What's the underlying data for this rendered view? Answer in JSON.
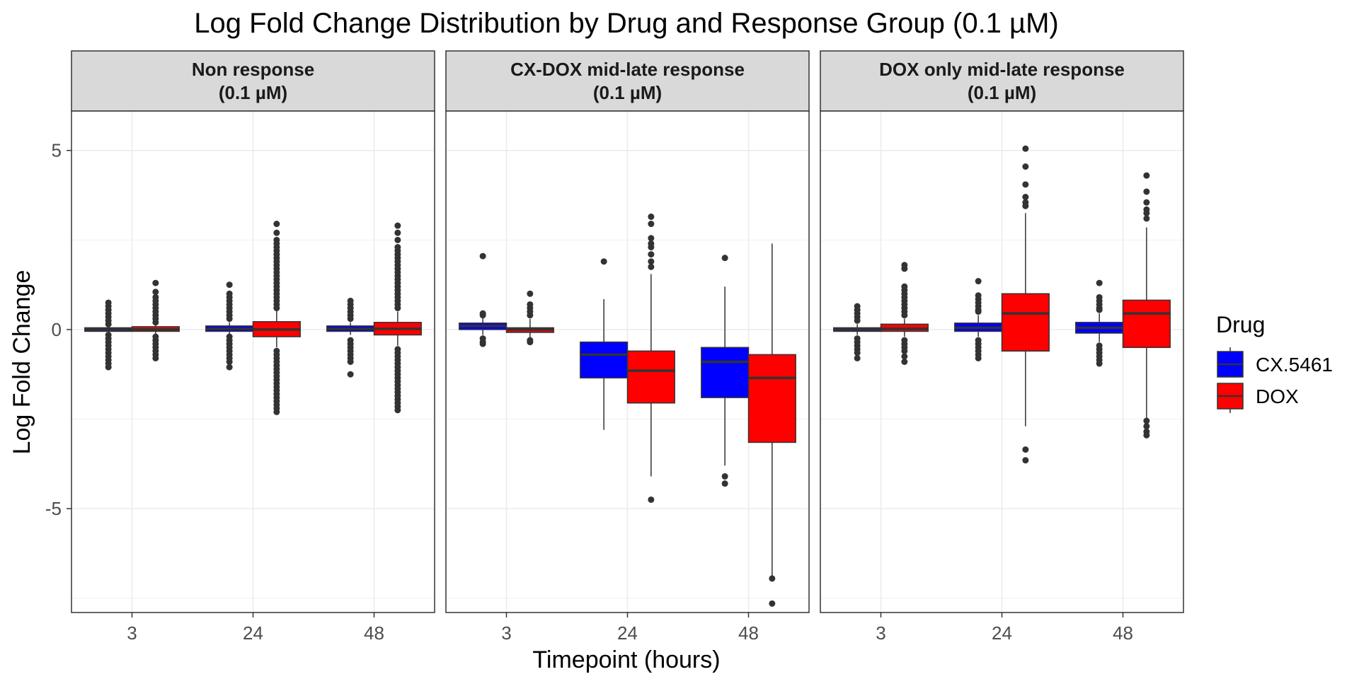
{
  "chart_data": {
    "type": "boxplot",
    "title": "Log Fold Change Distribution by Drug and Response Group (0.1 µM)",
    "xlabel": "Timepoint (hours)",
    "ylabel": "Log Fold Change",
    "ylim": [
      -7.9,
      6.1
    ],
    "yticks": [
      5,
      0,
      -5
    ],
    "ytick_labels": [
      "5",
      "0",
      "-5"
    ],
    "categories": [
      "3",
      "24",
      "48"
    ],
    "grid": true,
    "legend": {
      "title": "Drug",
      "position": "right",
      "entries": [
        {
          "name": "CX.5461",
          "color": "#0000ff"
        },
        {
          "name": "DOX",
          "color": "#ff0000"
        }
      ]
    },
    "facets": [
      {
        "label_line1": "Non response",
        "label_line2": "(0.1 µM)",
        "boxes": [
          {
            "time": "3",
            "drug": "CX.5461",
            "q1": -0.05,
            "median": 0.0,
            "q3": 0.05,
            "whisker_low": -0.1,
            "whisker_high": 0.1,
            "outliers": [
              0.75,
              0.65,
              0.55,
              0.45,
              0.35,
              0.25,
              0.15,
              -0.15,
              -0.25,
              -0.35,
              -0.45,
              -0.55,
              -0.65,
              -0.75,
              -0.85,
              -0.95,
              -1.05
            ]
          },
          {
            "time": "3",
            "drug": "DOX",
            "q1": -0.05,
            "median": 0.0,
            "q3": 0.08,
            "whisker_low": -0.12,
            "whisker_high": 0.15,
            "outliers": [
              1.3,
              1.05,
              0.9,
              0.8,
              0.7,
              0.6,
              0.5,
              0.4,
              0.3,
              0.2,
              -0.2,
              -0.3,
              -0.4,
              -0.5,
              -0.6,
              -0.7,
              -0.8
            ]
          },
          {
            "time": "24",
            "drug": "CX.5461",
            "q1": -0.05,
            "median": 0.02,
            "q3": 0.1,
            "whisker_low": -0.15,
            "whisker_high": 0.2,
            "outliers": [
              1.25,
              1.0,
              0.9,
              0.8,
              0.7,
              0.6,
              0.5,
              0.4,
              0.3,
              -0.2,
              -0.3,
              -0.4,
              -0.5,
              -0.6,
              -0.7,
              -0.8,
              -0.9,
              -1.05
            ]
          },
          {
            "time": "24",
            "drug": "DOX",
            "q1": -0.2,
            "median": 0.0,
            "q3": 0.22,
            "whisker_low": -0.5,
            "whisker_high": 0.55,
            "outliers": [
              2.95,
              2.7,
              2.5,
              2.4,
              2.3,
              2.2,
              2.1,
              2.0,
              1.9,
              1.8,
              1.7,
              1.6,
              1.5,
              1.4,
              1.3,
              1.2,
              1.1,
              1.0,
              0.9,
              0.8,
              0.7,
              0.6,
              -0.6,
              -0.7,
              -0.8,
              -0.9,
              -1.0,
              -1.1,
              -1.2,
              -1.3,
              -1.4,
              -1.5,
              -1.6,
              -1.7,
              -1.8,
              -1.9,
              -2.0,
              -2.1,
              -2.2,
              -2.3
            ]
          },
          {
            "time": "48",
            "drug": "CX.5461",
            "q1": -0.05,
            "median": 0.02,
            "q3": 0.1,
            "whisker_low": -0.15,
            "whisker_high": 0.2,
            "outliers": [
              0.8,
              0.7,
              0.6,
              0.5,
              0.4,
              0.3,
              -0.3,
              -0.4,
              -0.5,
              -0.6,
              -0.7,
              -0.8,
              -0.9,
              -1.25
            ]
          },
          {
            "time": "48",
            "drug": "DOX",
            "q1": -0.15,
            "median": 0.02,
            "q3": 0.2,
            "whisker_low": -0.45,
            "whisker_high": 0.5,
            "outliers": [
              2.9,
              2.7,
              2.5,
              2.3,
              2.2,
              2.1,
              2.0,
              1.9,
              1.8,
              1.7,
              1.6,
              1.5,
              1.4,
              1.3,
              1.2,
              1.1,
              1.0,
              0.9,
              0.8,
              0.7,
              0.6,
              -0.55,
              -0.65,
              -0.75,
              -0.85,
              -0.95,
              -1.05,
              -1.15,
              -1.25,
              -1.35,
              -1.45,
              -1.55,
              -1.65,
              -1.75,
              -1.85,
              -1.95,
              -2.05,
              -2.15,
              -2.25
            ]
          }
        ]
      },
      {
        "label_line1": "CX-DOX mid-late response",
        "label_line2": "(0.1 µM)",
        "boxes": [
          {
            "time": "3",
            "drug": "CX.5461",
            "q1": 0.0,
            "median": 0.1,
            "q3": 0.18,
            "whisker_low": -0.15,
            "whisker_high": 0.35,
            "outliers": [
              2.05,
              0.45,
              0.4,
              -0.25,
              -0.35,
              -0.4
            ]
          },
          {
            "time": "3",
            "drug": "DOX",
            "q1": -0.08,
            "median": 0.0,
            "q3": 0.05,
            "whisker_low": -0.25,
            "whisker_high": 0.3,
            "outliers": [
              1.0,
              0.7,
              0.6,
              0.5,
              0.4,
              -0.3,
              -0.35
            ]
          },
          {
            "time": "24",
            "drug": "CX.5461",
            "q1": -1.35,
            "median": -0.7,
            "q3": -0.35,
            "whisker_low": -2.8,
            "whisker_high": 0.85,
            "outliers": [
              1.9
            ]
          },
          {
            "time": "24",
            "drug": "DOX",
            "q1": -2.05,
            "median": -1.15,
            "q3": -0.6,
            "whisker_low": -4.1,
            "whisker_high": 1.55,
            "outliers": [
              3.15,
              2.95,
              2.55,
              2.4,
              2.3,
              2.1,
              1.9,
              1.75,
              -4.75
            ]
          },
          {
            "time": "48",
            "drug": "CX.5461",
            "q1": -1.9,
            "median": -0.9,
            "q3": -0.5,
            "whisker_low": -3.8,
            "whisker_high": 1.2,
            "outliers": [
              2.0,
              -4.1,
              -4.3
            ]
          },
          {
            "time": "48",
            "drug": "DOX",
            "q1": -3.15,
            "median": -1.35,
            "q3": -0.7,
            "whisker_low": -6.9,
            "whisker_high": 2.4,
            "outliers": [
              -6.95,
              -7.65
            ]
          }
        ]
      },
      {
        "label_line1": "DOX only mid-late response",
        "label_line2": "(0.1 µM)",
        "boxes": [
          {
            "time": "3",
            "drug": "CX.5461",
            "q1": -0.05,
            "median": 0.0,
            "q3": 0.05,
            "whisker_low": -0.15,
            "whisker_high": 0.15,
            "outliers": [
              0.65,
              0.55,
              0.45,
              0.35,
              0.25,
              -0.25,
              -0.35,
              -0.45,
              -0.55,
              -0.65,
              -0.8
            ]
          },
          {
            "time": "3",
            "drug": "DOX",
            "q1": -0.05,
            "median": 0.02,
            "q3": 0.15,
            "whisker_low": -0.2,
            "whisker_high": 0.3,
            "outliers": [
              1.8,
              1.7,
              1.2,
              1.1,
              1.0,
              0.9,
              0.8,
              0.7,
              0.6,
              0.5,
              0.4,
              -0.3,
              -0.4,
              -0.5,
              -0.6,
              -0.75,
              -0.9
            ]
          },
          {
            "time": "24",
            "drug": "CX.5461",
            "q1": -0.05,
            "median": 0.05,
            "q3": 0.18,
            "whisker_low": -0.2,
            "whisker_high": 0.4,
            "outliers": [
              1.35,
              0.95,
              0.85,
              0.75,
              0.65,
              0.55,
              0.5,
              -0.3,
              -0.4,
              -0.5,
              -0.6,
              -0.7,
              -0.8
            ]
          },
          {
            "time": "24",
            "drug": "DOX",
            "q1": -0.6,
            "median": 0.45,
            "q3": 1.0,
            "whisker_low": -2.7,
            "whisker_high": 3.25,
            "outliers": [
              5.05,
              4.55,
              4.05,
              3.7,
              3.55,
              3.45,
              -3.35,
              -3.65
            ]
          },
          {
            "time": "48",
            "drug": "CX.5461",
            "q1": -0.1,
            "median": 0.05,
            "q3": 0.2,
            "whisker_low": -0.35,
            "whisker_high": 0.45,
            "outliers": [
              1.3,
              0.9,
              0.8,
              0.7,
              0.6,
              0.55,
              -0.45,
              -0.55,
              -0.65,
              -0.75,
              -0.85,
              -0.95
            ]
          },
          {
            "time": "48",
            "drug": "DOX",
            "q1": -0.5,
            "median": 0.45,
            "q3": 0.82,
            "whisker_low": -2.5,
            "whisker_high": 2.85,
            "outliers": [
              4.3,
              3.85,
              3.55,
              3.35,
              3.25,
              3.1,
              -2.55,
              -2.7,
              -2.85,
              -2.95
            ]
          }
        ]
      }
    ]
  }
}
